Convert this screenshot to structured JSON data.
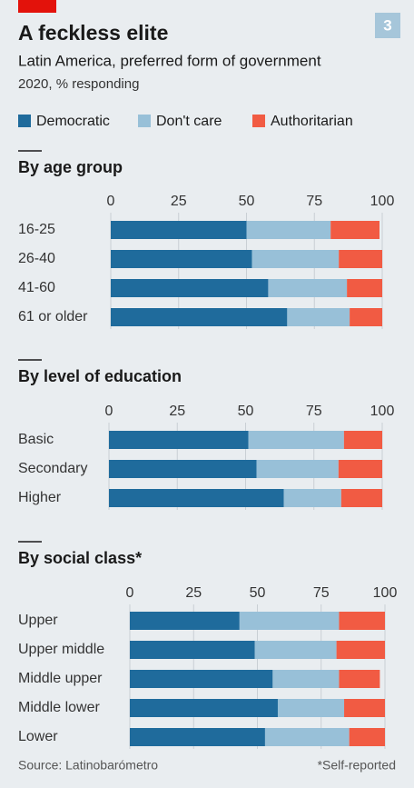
{
  "header": {
    "badge": "3",
    "title": "A feckless elite",
    "subtitle": "Latin America, preferred form of government",
    "note": "2020, % responding"
  },
  "footer": {
    "source": "Source: Latinobarómetro",
    "footnote": "*Self-reported"
  },
  "chart_data": [
    {
      "type": "bar",
      "stacked": true,
      "orientation": "horizontal",
      "title": "By age group",
      "categories": [
        "16-25",
        "26-40",
        "41-60",
        "61 or older"
      ],
      "series": [
        {
          "name": "Democratic",
          "color": "#1f6b9c",
          "values": [
            50,
            52,
            58,
            65
          ]
        },
        {
          "name": "Don't care",
          "color": "#98c0d8",
          "values": [
            31,
            32,
            29,
            23
          ]
        },
        {
          "name": "Authoritarian",
          "color": "#f15b43",
          "values": [
            18,
            16,
            13,
            12
          ]
        }
      ],
      "xlim": [
        0,
        100
      ],
      "xticks": [
        0,
        25,
        50,
        75,
        100
      ],
      "grid": true
    },
    {
      "type": "bar",
      "stacked": true,
      "orientation": "horizontal",
      "title": "By level of education",
      "categories": [
        "Basic",
        "Secondary",
        "Higher"
      ],
      "series": [
        {
          "color": "#1f6b9c",
          "values": [
            51,
            54,
            64
          ]
        },
        {
          "color": "#98c0d8",
          "values": [
            35,
            30,
            21
          ]
        },
        {
          "color": "#f15b43",
          "values": [
            14,
            16,
            15
          ]
        }
      ],
      "xlim": [
        0,
        100
      ],
      "xticks": [
        0,
        25,
        50,
        75,
        100
      ],
      "grid": true
    },
    {
      "type": "bar",
      "stacked": true,
      "orientation": "horizontal",
      "title": "By social class*",
      "categories": [
        "Upper",
        "Upper middle",
        "Middle upper",
        "Middle lower",
        "Lower"
      ],
      "series": [
        {
          "color": "#1f6b9c",
          "values": [
            43,
            49,
            56,
            58,
            53
          ]
        },
        {
          "color": "#98c0d8",
          "values": [
            39,
            32,
            26,
            26,
            33
          ]
        },
        {
          "color": "#f15b43",
          "values": [
            18,
            19,
            16,
            16,
            14
          ]
        }
      ],
      "xlim": [
        0,
        100
      ],
      "xticks": [
        0,
        25,
        50,
        75,
        100
      ],
      "grid": true
    }
  ]
}
